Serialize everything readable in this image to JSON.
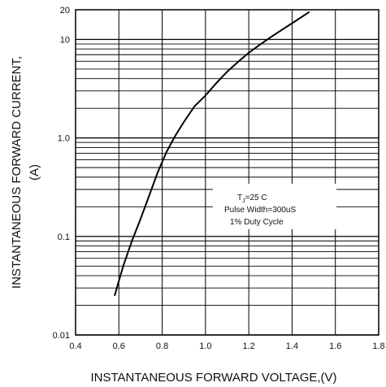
{
  "chart_data": {
    "type": "line",
    "xlabel": "INSTANTANEOUS FORWARD VOLTAGE,(V)",
    "ylabel_line1": "INSTANTANEOUS FORWARD CURRENT,",
    "ylabel_line2": "(A)",
    "xlim": [
      0.4,
      1.8
    ],
    "ylim": [
      0.01,
      20
    ],
    "yscale": "log",
    "grid": true,
    "x_ticks": [
      0.4,
      0.6,
      0.8,
      1.0,
      1.2,
      1.4,
      1.6,
      1.8
    ],
    "x_tick_labels": [
      "0.4",
      "0.6",
      "0.8",
      "1.0",
      "1.2",
      "1.4",
      "1.6",
      "1.8"
    ],
    "y_tick_labels": [
      {
        "value": 0.01,
        "label": "0.01"
      },
      {
        "value": 0.1,
        "label": "0.1"
      },
      {
        "value": 1,
        "label": "1.0"
      },
      {
        "value": 10,
        "label": "10"
      },
      {
        "value": 20,
        "label": "20"
      }
    ],
    "series": [
      {
        "x": [
          0.58,
          0.62,
          0.66,
          0.7,
          0.74,
          0.78,
          0.82,
          0.86,
          0.9,
          0.95,
          1.0,
          1.05,
          1.1,
          1.15,
          1.2,
          1.25,
          1.3,
          1.35,
          1.4,
          1.45,
          1.48
        ],
        "y": [
          0.025,
          0.05,
          0.09,
          0.15,
          0.26,
          0.45,
          0.72,
          1.05,
          1.45,
          2.1,
          2.7,
          3.6,
          4.7,
          5.9,
          7.3,
          8.8,
          10.5,
          12.4,
          14.6,
          17.2,
          19
        ]
      }
    ],
    "annotation": {
      "line1": "T",
      "line1_sub": "J",
      "line1_rest": "=25    C",
      "line2": "Pulse Width=300uS",
      "line3": "1% Duty Cycle"
    }
  }
}
